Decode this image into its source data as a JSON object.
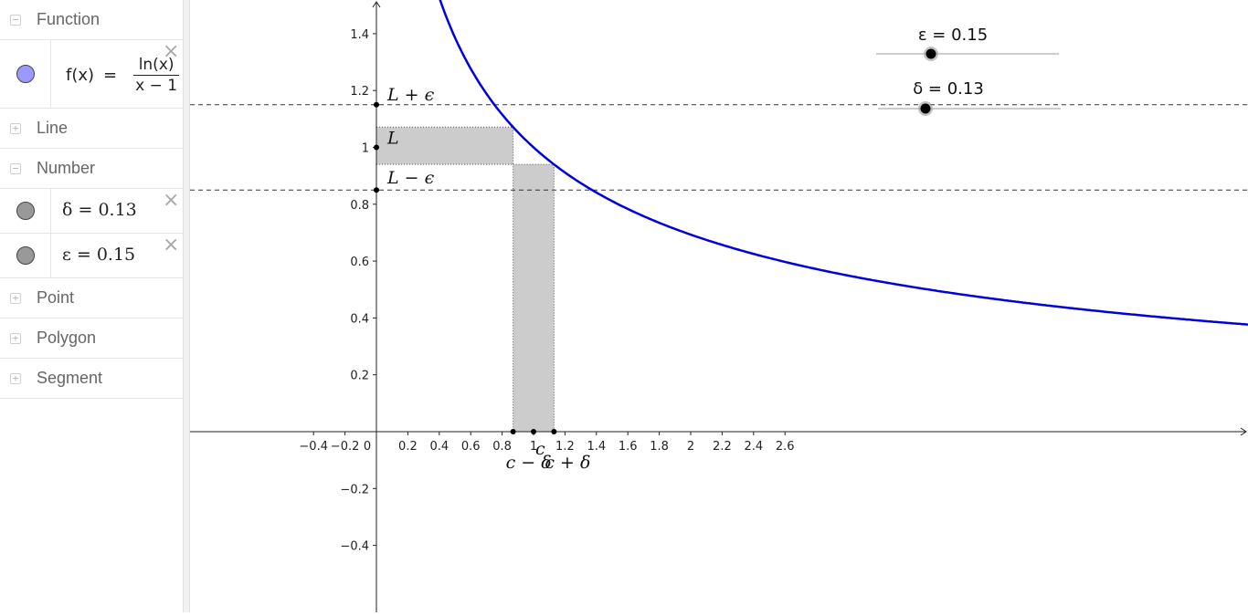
{
  "algebra": {
    "function_group": "Function",
    "function": {
      "name": "f(x)",
      "equals": "=",
      "numerator": "ln(x)",
      "denominator": "x − 1",
      "color": "#9999ff"
    },
    "line_group": "Line",
    "number_group": "Number",
    "delta": {
      "text": "δ = 0.13",
      "color": "#999999"
    },
    "epsilon": {
      "text": "ε = 0.15",
      "color": "#999999"
    },
    "point_group": "Point",
    "polygon_group": "Polygon",
    "segment_group": "Segment"
  },
  "graph": {
    "x_ticks": [
      "−0.4",
      "−0.2",
      "0",
      "0.2",
      "0.4",
      "0.6",
      "0.8",
      "1",
      "1.2",
      "1.4",
      "1.6",
      "1.8",
      "2",
      "2.2",
      "2.4",
      "2.6"
    ],
    "y_ticks_pos": [
      "0.2",
      "0.4",
      "0.6",
      "0.8",
      "1",
      "1.2",
      "1.4"
    ],
    "y_ticks_neg": [
      "−0.2",
      "−0.4"
    ],
    "labels": {
      "L_plus": "L + ϵ",
      "L": "L",
      "L_minus": "L − ϵ",
      "c_minus": "c − δ",
      "c": "c",
      "c_plus": "c + δ"
    },
    "values": {
      "c": 1,
      "L": 1,
      "delta": 0.13,
      "epsilon": 0.15
    },
    "slider_epsilon": "ε = 0.15",
    "slider_delta": "δ = 0.13",
    "curve_color": "#0000dd",
    "shade_color": "#cccccc"
  }
}
